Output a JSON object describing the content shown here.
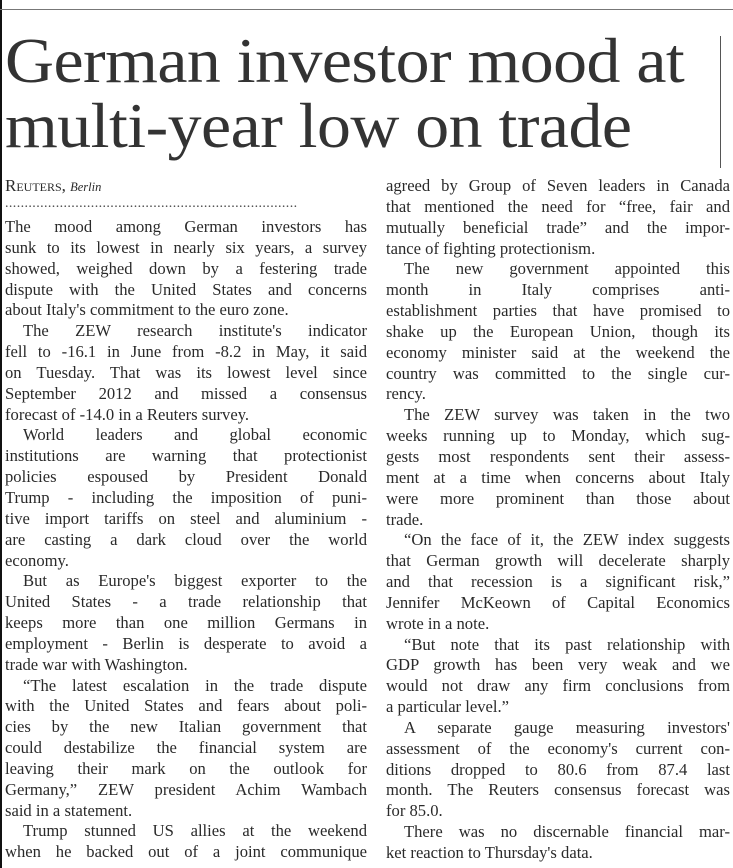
{
  "headline": {
    "lines": [
      "German investor mood at",
      "multi-year low on trade"
    ]
  },
  "byline": {
    "agency": "Reuters,",
    "city": "Berlin"
  },
  "separator": "...........................................................................",
  "left_column": {
    "paragraphs": [
      {
        "indent": false,
        "lines": [
          "The mood among German investors has",
          "sunk to its lowest in nearly six years, a survey",
          "showed, weighed down by a festering trade",
          "dispute with the United States and concerns",
          "about Italy's commitment to the euro zone."
        ]
      },
      {
        "indent": true,
        "lines": [
          "The ZEW research institute's indicator",
          "fell to -16.1 in June from -8.2 in May, it said",
          "on Tuesday. That was its lowest level since",
          "September 2012 and missed a consensus",
          "forecast of -14.0 in a Reuters survey."
        ]
      },
      {
        "indent": true,
        "lines": [
          "World leaders and global economic",
          "institutions are warning that protectionist",
          "policies espoused by President Donald",
          "Trump - including the imposition of puni-",
          "tive import tariffs on steel and aluminium -",
          "are casting a dark cloud over the world",
          "economy."
        ]
      },
      {
        "indent": true,
        "lines": [
          "But as Europe's biggest exporter to the",
          "United States - a trade relationship that",
          "keeps more than one million Germans in",
          "employment - Berlin is desperate to avoid a",
          "trade war with Washington."
        ]
      },
      {
        "indent": true,
        "lines": [
          "“The latest escalation in the trade dispute",
          "with the United States and fears about poli-",
          "cies by the new Italian government that",
          "could destabilize the financial system are",
          "leaving their mark on the outlook for",
          "Germany,” ZEW president Achim Wambach",
          "said in a statement."
        ]
      },
      {
        "indent": true,
        "continues": true,
        "lines": [
          "Trump stunned US allies at the weekend",
          "when he backed out of a joint communique"
        ]
      }
    ]
  },
  "right_column": {
    "paragraphs": [
      {
        "indent": false,
        "lines": [
          "agreed by Group of Seven leaders in Canada",
          "that mentioned the need for “free, fair and",
          "mutually beneficial trade” and the impor-",
          "tance of fighting protectionism."
        ]
      },
      {
        "indent": true,
        "lines": [
          "The new government appointed this",
          "month in Italy comprises anti-",
          "establishment parties that have promised to",
          "shake up the European Union, though its",
          "economy minister said at the weekend the",
          "country was committed to the single cur-",
          "rency."
        ]
      },
      {
        "indent": true,
        "lines": [
          "The ZEW survey was taken in the two",
          "weeks running up to Monday, which sug-",
          "gests most respondents sent their assess-",
          "ment at a time when concerns about Italy",
          "were more prominent than those about",
          "trade."
        ]
      },
      {
        "indent": true,
        "lines": [
          "“On the face of it, the ZEW index suggests",
          "that German growth will decelerate sharply",
          "and that recession is a significant risk,”",
          "Jennifer McKeown of Capital Economics",
          "wrote in a note."
        ]
      },
      {
        "indent": true,
        "lines": [
          "“But note that its past relationship with",
          "GDP growth has been very weak and we",
          "would not draw any firm conclusions from",
          "a particular level.”"
        ]
      },
      {
        "indent": true,
        "lines": [
          "A separate gauge measuring investors'",
          "assessment of the economy's current con-",
          "ditions dropped to 80.6 from 87.4 last",
          "month. The Reuters consensus forecast was",
          "for 85.0."
        ]
      },
      {
        "indent": true,
        "lines": [
          "There was no discernable financial mar-",
          "ket reaction to Thursday's data."
        ]
      }
    ]
  }
}
